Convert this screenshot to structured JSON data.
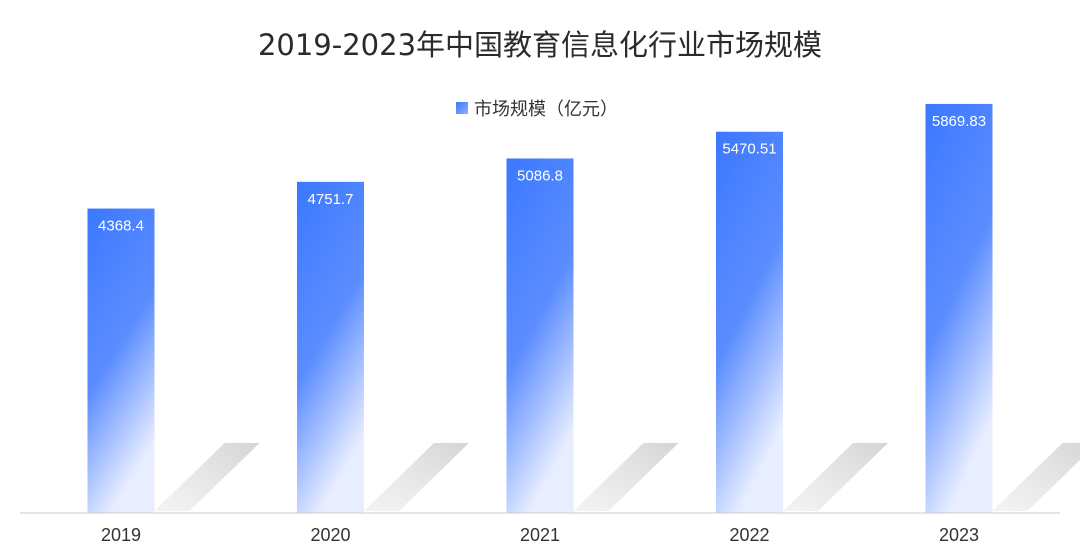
{
  "chart_data": {
    "type": "bar",
    "title": "2019-2023年中国教育信息化行业市场规模",
    "categories": [
      "2019",
      "2020",
      "2021",
      "2022",
      "2023"
    ],
    "series": [
      {
        "name": "市场规模（亿元）",
        "values": [
          4368.4,
          4751.7,
          5086.8,
          5470.51,
          5869.83
        ],
        "data_labels": [
          "4368.4",
          "4751.7",
          "5086.8",
          "5470.51",
          "5869.83"
        ]
      }
    ],
    "xlabel": "",
    "ylabel": "",
    "ylim": [
      0,
      6500
    ],
    "grid": false,
    "legend": "top-center",
    "colors": {
      "bar_top": "#3b78ff",
      "bar_bottom": "#e8eeff",
      "shadow": "#c9c9c9",
      "axis": "#cccccc",
      "text": "#333333",
      "label": "#ffffff"
    }
  }
}
